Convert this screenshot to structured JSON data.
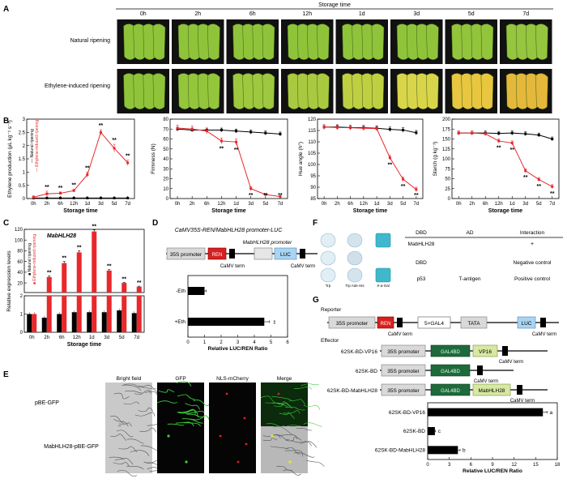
{
  "panel_letters": [
    "A",
    "B",
    "C",
    "D",
    "E",
    "F",
    "G"
  ],
  "panel_a": {
    "storage_time_label": "Storage time",
    "times": [
      "0h",
      "2h",
      "6h",
      "12h",
      "1d",
      "3d",
      "5d",
      "7d"
    ],
    "rows": [
      "Natural ripening",
      "Ethylene-induced ripening"
    ],
    "peel_colors": [
      [
        "#8fc43a",
        "#8fc43a",
        "#8fc43a",
        "#8fc43a",
        "#8fc43a",
        "#8fc43a",
        "#92c43c",
        "#96c53f"
      ],
      [
        "#8fc43a",
        "#94c63c",
        "#9ec83e",
        "#a9ca40",
        "#bfcf42",
        "#d9d54a",
        "#e8c640",
        "#e4b83a"
      ]
    ]
  },
  "legend": {
    "natural": "Natural ripening",
    "ethylene": "Ethylene-induced ripening"
  },
  "colors": {
    "natural": "#000000",
    "ethylene": "#e8282b"
  },
  "chart_data": [
    {
      "id": "B1",
      "type": "line",
      "ylabel": "Ethylene production (μL kg⁻¹ s⁻¹)",
      "xlabel": "Storage time",
      "categories": [
        "0h",
        "2h",
        "6h",
        "12h",
        "1d",
        "3d",
        "5d",
        "7d"
      ],
      "ylim": [
        0,
        3
      ],
      "yticks": [
        0,
        0.5,
        1,
        1.5,
        2,
        2.5,
        3
      ],
      "series": [
        {
          "key": "natural",
          "values": [
            0.02,
            0.02,
            0.02,
            0.02,
            0.02,
            0.02,
            0.02,
            0.02
          ],
          "err": [
            0,
            0,
            0,
            0,
            0,
            0,
            0,
            0
          ]
        },
        {
          "key": "ethylene",
          "values": [
            0.05,
            0.18,
            0.2,
            0.3,
            0.9,
            2.5,
            1.9,
            1.35
          ],
          "err": [
            0.05,
            0.1,
            0.05,
            0.05,
            0.1,
            0.1,
            0.15,
            0.1
          ]
        }
      ],
      "sig": [
        "",
        "**",
        "**",
        "**",
        "**",
        "**",
        "**",
        "**"
      ]
    },
    {
      "id": "B2",
      "type": "line",
      "ylabel": "Firmness (N)",
      "xlabel": "Storage time",
      "categories": [
        "0h",
        "2h",
        "6h",
        "12h",
        "1d",
        "3d",
        "5d",
        "7d"
      ],
      "ylim": [
        0,
        80
      ],
      "yticks": [
        0,
        10,
        20,
        30,
        40,
        50,
        60,
        70,
        80
      ],
      "series": [
        {
          "key": "natural",
          "values": [
            70,
            69,
            69,
            69,
            68,
            67,
            66,
            65
          ],
          "err": [
            2,
            2,
            2,
            2,
            2,
            2,
            2,
            2
          ]
        },
        {
          "key": "ethylene",
          "values": [
            71,
            70,
            68,
            58,
            57,
            10,
            4,
            2
          ],
          "err": [
            3,
            3,
            3,
            3,
            3,
            2,
            1,
            1
          ]
        }
      ],
      "sig": [
        "",
        "",
        "",
        "**",
        "**",
        "**",
        "**",
        "**"
      ]
    },
    {
      "id": "B3",
      "type": "line",
      "ylabel": "Hue angle (h°)",
      "xlabel": "Storage time",
      "categories": [
        "0h",
        "2h",
        "6h",
        "12h",
        "1d",
        "3d",
        "5d",
        "7d"
      ],
      "ylim": [
        85,
        120
      ],
      "yticks": [
        85,
        90,
        95,
        100,
        105,
        110,
        115,
        120
      ],
      "series": [
        {
          "key": "natural",
          "values": [
            116.5,
            116.5,
            116.3,
            116.2,
            116,
            115.5,
            115.2,
            114
          ],
          "err": [
            1,
            1,
            1,
            1,
            1,
            1,
            1,
            1
          ]
        },
        {
          "key": "ethylene",
          "values": [
            116.5,
            116.3,
            116.2,
            116,
            115.8,
            103,
            93.5,
            89
          ],
          "err": [
            1,
            1,
            1,
            1,
            1,
            1,
            1,
            1
          ]
        }
      ],
      "sig": [
        "",
        "",
        "",
        "",
        "",
        "**",
        "**",
        "**"
      ]
    },
    {
      "id": "B4",
      "type": "line",
      "ylabel": "Starch (g kg⁻¹)",
      "xlabel": "Storage time",
      "categories": [
        "0h",
        "2h",
        "6h",
        "12h",
        "1d",
        "3d",
        "5d",
        "7d"
      ],
      "ylim": [
        0,
        200
      ],
      "yticks": [
        0,
        25,
        50,
        75,
        100,
        125,
        150,
        175,
        200
      ],
      "series": [
        {
          "key": "natural",
          "values": [
            165,
            165,
            165,
            164,
            165,
            163,
            160,
            150
          ],
          "err": [
            5,
            5,
            5,
            5,
            5,
            5,
            5,
            5
          ]
        },
        {
          "key": "ethylene",
          "values": [
            165,
            165,
            163,
            145,
            140,
            70,
            48,
            30
          ],
          "err": [
            5,
            5,
            5,
            5,
            5,
            5,
            5,
            5
          ]
        }
      ],
      "sig": [
        "",
        "",
        "",
        "**",
        "**",
        "**",
        "**",
        "**"
      ]
    },
    {
      "id": "C",
      "type": "bar",
      "title": "MabHLH28",
      "ylabel": "Relative expression levels",
      "xlabel": "Storage time",
      "categories": [
        "0h",
        "2h",
        "6h",
        "12h",
        "1d",
        "3d",
        "5d",
        "7d"
      ],
      "yticks_low": [
        0,
        1,
        2
      ],
      "yticks_high": [
        20,
        40,
        60,
        80,
        100,
        120
      ],
      "series": [
        {
          "key": "natural",
          "values": [
            1,
            0.8,
            1,
            1.1,
            1.1,
            1.1,
            1.2,
            1.05
          ],
          "err": [
            0.1,
            0.1,
            0.1,
            0.1,
            0.1,
            0.1,
            0.1,
            0.1
          ]
        },
        {
          "key": "ethylene",
          "values": [
            1,
            31,
            57,
            77,
            116,
            43,
            20,
            13
          ],
          "err": [
            0.1,
            2,
            3,
            3,
            3,
            2,
            1,
            1
          ]
        }
      ],
      "sig": [
        "",
        "**",
        "**",
        "**",
        "**",
        "**",
        "**",
        "**"
      ]
    },
    {
      "id": "D",
      "type": "bar",
      "orientation": "horizontal",
      "xlabel": "Relative LUC/REN Ratio",
      "xlim": [
        0,
        6
      ],
      "xticks": [
        0,
        1,
        2,
        3,
        4,
        5,
        6
      ],
      "categories": [
        "-Eth",
        "+Eth"
      ],
      "values": [
        1,
        4.6
      ],
      "err": [
        0.1,
        0.3
      ],
      "sig": [
        "",
        "**"
      ]
    },
    {
      "id": "G",
      "type": "bar",
      "orientation": "horizontal",
      "xlabel": "Relative LUC/REN Ratio",
      "xlim": [
        0,
        18
      ],
      "xticks": [
        0,
        3,
        6,
        9,
        12,
        15,
        18
      ],
      "categories": [
        "62SK-BD-VP16",
        "62SK-BD",
        "62SK-BD-MabHLH28"
      ],
      "values": [
        16,
        1,
        4.2
      ],
      "err": [
        0.6,
        0.1,
        0.3
      ],
      "letters": [
        "a",
        "c",
        "b"
      ]
    }
  ],
  "panel_d": {
    "construct_title": "CaMV35S-REN/MabHLH28 promoter-LUC",
    "promoter_35s": "35S promoter",
    "ren": "REN",
    "camv_term": "CaMV term",
    "mab_promoter": "MabHLH28 promoter",
    "luc": "LUC"
  },
  "panel_e": {
    "headers": [
      "Bright field",
      "GFP",
      "NLS-mCherry",
      "Merge"
    ],
    "rows": [
      "pBE-GFP",
      "MabHLH28-pBE-GFP"
    ]
  },
  "panel_f": {
    "media": [
      "Trp",
      "Trp Ade His",
      "X-α-Gal"
    ],
    "table_headers": [
      "DBD",
      "AD",
      "Interaction"
    ],
    "rows": [
      {
        "dbd": "MabHLH28",
        "ad": "",
        "interaction": "+"
      },
      {
        "dbd": "DBD",
        "ad": "",
        "interaction": "Negative control"
      },
      {
        "dbd": "p53",
        "ad": "T-antigen",
        "interaction": "Positive control"
      }
    ]
  },
  "panel_g": {
    "reporter_label": "Reporter",
    "effector_label": "Effector",
    "promoter_35s": "35S promoter",
    "ren": "REN",
    "gal4": "5×GAL4",
    "tata": "TATA",
    "luc": "LUC",
    "camv_term": "CaMV term",
    "gal4bd": "GAL4BD",
    "vp16": "VP16",
    "mabhlh28": "MabHLH28",
    "effectors": [
      "62SK-BD-VP16",
      "62SK-BD",
      "62SK-BD-MabHLH28"
    ]
  }
}
